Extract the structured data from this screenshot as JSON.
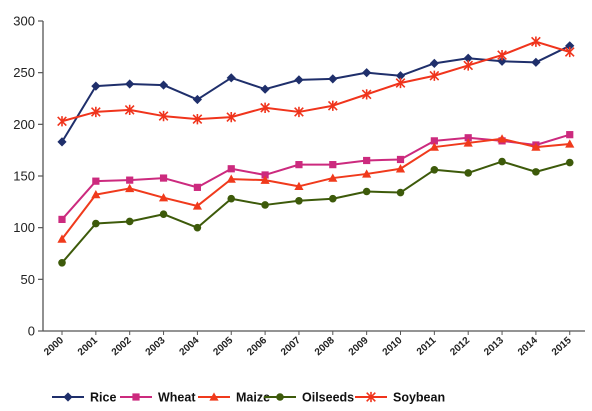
{
  "chart_data": {
    "type": "line",
    "x": [
      "2000",
      "2001",
      "2002",
      "2003",
      "2004",
      "2005",
      "2006",
      "2007",
      "2008",
      "2009",
      "2010",
      "2011",
      "2012",
      "2013",
      "2014",
      "2015"
    ],
    "ylim": [
      0,
      300
    ],
    "yticks": [
      0,
      50,
      100,
      150,
      200,
      250,
      300
    ],
    "grid": false,
    "legend_position": "bottom",
    "series": [
      {
        "name": "Rice",
        "color": "#1f2f6b",
        "marker": "diamond",
        "values": [
          183,
          237,
          239,
          238,
          224,
          245,
          234,
          243,
          244,
          250,
          247,
          259,
          264,
          261,
          260,
          276
        ]
      },
      {
        "name": "Wheat",
        "color": "#cc2a7e",
        "marker": "square",
        "values": [
          108,
          145,
          146,
          148,
          139,
          157,
          151,
          161,
          161,
          165,
          166,
          184,
          187,
          184,
          180,
          190
        ]
      },
      {
        "name": "Maize",
        "color": "#f03a1c",
        "marker": "triangle",
        "values": [
          89,
          132,
          138,
          129,
          121,
          147,
          146,
          140,
          148,
          152,
          157,
          178,
          182,
          186,
          178,
          181
        ]
      },
      {
        "name": "Oilseeds",
        "color": "#3d5a0a",
        "marker": "circle",
        "values": [
          66,
          104,
          106,
          113,
          100,
          128,
          122,
          126,
          128,
          135,
          134,
          156,
          153,
          164,
          154,
          163
        ]
      },
      {
        "name": "Soybean",
        "color": "#f0341c",
        "marker": "star",
        "values": [
          203,
          212,
          214,
          208,
          205,
          207,
          216,
          212,
          218,
          229,
          240,
          247,
          257,
          267,
          280,
          270
        ]
      }
    ]
  }
}
